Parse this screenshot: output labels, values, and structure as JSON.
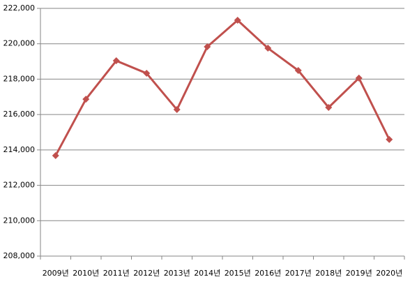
{
  "chart_data": {
    "type": "line",
    "categories": [
      "2009년",
      "2010년",
      "2011년",
      "2012년",
      "2013년",
      "2014년",
      "2015년",
      "2016년",
      "2017년",
      "2018년",
      "2019년",
      "2020년"
    ],
    "values": [
      213680,
      216870,
      219040,
      218330,
      216280,
      219830,
      221330,
      219750,
      218490,
      216400,
      218060,
      214590
    ],
    "color": "#c0504d",
    "ylim": [
      208000,
      222000
    ],
    "yticks": [
      {
        "value": 208000,
        "label": "208,000"
      },
      {
        "value": 210000,
        "label": "210,000"
      },
      {
        "value": 212000,
        "label": "212,000"
      },
      {
        "value": 214000,
        "label": "214,000"
      },
      {
        "value": 216000,
        "label": "216,000"
      },
      {
        "value": 218000,
        "label": "218,000"
      },
      {
        "value": 220000,
        "label": "220,000"
      },
      {
        "value": 222000,
        "label": "222,000"
      }
    ],
    "grid": true
  }
}
